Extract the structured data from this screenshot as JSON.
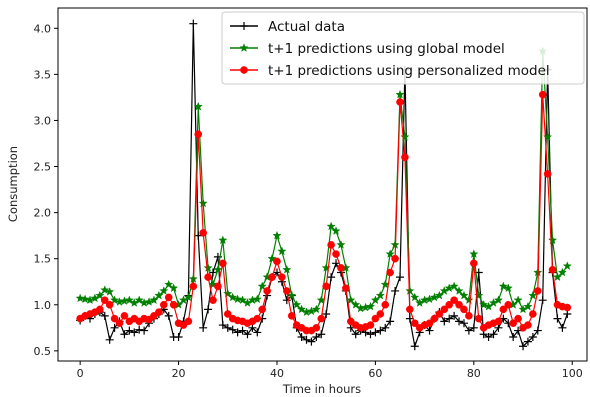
{
  "chart_data": {
    "type": "line",
    "title": "",
    "xlabel": "Time in hours",
    "ylabel": "Consumption",
    "xlim": [
      -4.5,
      103
    ],
    "ylim": [
      0.39,
      4.22
    ],
    "xticks": [
      0,
      20,
      40,
      60,
      80,
      100
    ],
    "yticks": [
      0.5,
      1.0,
      1.5,
      2.0,
      2.5,
      3.0,
      3.5,
      4.0
    ],
    "grid": false,
    "legend_position": "top-right",
    "x": [
      0,
      1,
      2,
      3,
      4,
      5,
      6,
      7,
      8,
      9,
      10,
      11,
      12,
      13,
      14,
      15,
      16,
      17,
      18,
      19,
      20,
      21,
      22,
      23,
      24,
      25,
      26,
      27,
      28,
      29,
      30,
      31,
      32,
      33,
      34,
      35,
      36,
      37,
      38,
      39,
      40,
      41,
      42,
      43,
      44,
      45,
      46,
      47,
      48,
      49,
      50,
      51,
      52,
      53,
      54,
      55,
      56,
      57,
      58,
      59,
      60,
      61,
      62,
      63,
      64,
      65,
      66,
      67,
      68,
      69,
      70,
      71,
      72,
      73,
      74,
      75,
      76,
      77,
      78,
      79,
      80,
      81,
      82,
      83,
      84,
      85,
      86,
      87,
      88,
      89,
      90,
      91,
      92,
      93,
      94,
      95,
      96,
      97,
      98,
      99
    ],
    "series": [
      {
        "name": "Actual data",
        "color": "#000000",
        "marker": "plus",
        "values": [
          0.83,
          0.88,
          0.85,
          0.9,
          0.92,
          0.88,
          0.62,
          0.75,
          0.82,
          0.68,
          0.72,
          0.7,
          0.73,
          0.72,
          0.8,
          0.85,
          0.9,
          0.95,
          0.88,
          0.65,
          0.65,
          0.82,
          1.1,
          4.05,
          1.75,
          0.75,
          0.95,
          1.35,
          1.52,
          0.78,
          0.75,
          0.73,
          0.7,
          0.72,
          0.68,
          0.75,
          0.7,
          0.85,
          1.1,
          1.3,
          1.35,
          1.25,
          1.05,
          1.1,
          0.75,
          0.65,
          0.62,
          0.6,
          0.65,
          0.68,
          0.9,
          1.3,
          1.45,
          1.35,
          1.15,
          0.75,
          0.68,
          0.72,
          0.7,
          0.68,
          0.7,
          0.72,
          0.75,
          0.82,
          1.15,
          1.3,
          3.55,
          0.85,
          0.55,
          0.7,
          0.78,
          0.72,
          0.85,
          0.92,
          0.82,
          0.85,
          0.88,
          0.82,
          0.8,
          0.72,
          0.75,
          1.35,
          0.68,
          0.65,
          0.68,
          0.75,
          0.85,
          0.8,
          0.65,
          0.72,
          0.55,
          0.6,
          0.65,
          0.72,
          1.05,
          3.55,
          1.35,
          0.85,
          0.75,
          0.9
        ]
      },
      {
        "name": "t+1 predictions using global model",
        "color": "#008000",
        "marker": "star",
        "values": [
          1.07,
          1.06,
          1.05,
          1.07,
          1.1,
          1.16,
          1.14,
          1.05,
          1.03,
          1.04,
          1.05,
          1.02,
          1.05,
          1.02,
          1.03,
          1.05,
          1.1,
          1.15,
          1.22,
          1.18,
          1.0,
          1.05,
          1.08,
          1.28,
          3.15,
          2.1,
          1.4,
          1.22,
          1.38,
          1.7,
          1.12,
          1.08,
          1.06,
          1.05,
          1.02,
          1.05,
          1.06,
          1.2,
          1.3,
          1.5,
          1.75,
          1.58,
          1.38,
          1.1,
          1.0,
          0.95,
          0.92,
          0.93,
          0.95,
          1.05,
          1.4,
          1.85,
          1.8,
          1.65,
          1.4,
          1.05,
          1.0,
          0.96,
          0.97,
          0.98,
          1.05,
          1.1,
          1.22,
          1.55,
          1.65,
          3.28,
          2.82,
          1.15,
          1.08,
          1.02,
          1.05,
          1.06,
          1.08,
          1.1,
          1.15,
          1.18,
          1.2,
          1.15,
          1.1,
          1.05,
          1.55,
          1.1,
          1.0,
          0.98,
          1.02,
          1.05,
          1.2,
          1.18,
          1.0,
          1.05,
          0.95,
          0.98,
          1.1,
          1.35,
          3.75,
          2.82,
          1.7,
          1.3,
          1.35,
          1.42
        ]
      },
      {
        "name": "t+1 predictions using personalized model",
        "color": "#ff0000",
        "marker": "circle",
        "values": [
          0.85,
          0.88,
          0.9,
          0.92,
          0.95,
          1.05,
          1.0,
          0.85,
          0.8,
          0.88,
          0.82,
          0.85,
          0.82,
          0.85,
          0.84,
          0.88,
          0.92,
          1.0,
          1.08,
          1.0,
          0.8,
          0.78,
          0.82,
          1.2,
          2.85,
          1.78,
          1.3,
          1.05,
          1.2,
          1.45,
          0.9,
          0.85,
          0.83,
          0.82,
          0.8,
          0.82,
          0.85,
          0.95,
          1.15,
          1.3,
          1.47,
          1.3,
          1.15,
          0.88,
          0.78,
          0.75,
          0.72,
          0.72,
          0.75,
          0.85,
          1.2,
          1.65,
          1.55,
          1.4,
          1.18,
          0.82,
          0.78,
          0.75,
          0.76,
          0.78,
          0.85,
          0.9,
          1.0,
          1.35,
          1.5,
          3.2,
          2.6,
          0.95,
          0.8,
          0.75,
          0.78,
          0.8,
          0.85,
          0.9,
          0.95,
          1.0,
          1.05,
          1.0,
          0.95,
          0.88,
          1.45,
          0.85,
          0.75,
          0.78,
          0.8,
          0.82,
          0.95,
          1.0,
          0.8,
          0.85,
          0.75,
          0.78,
          0.9,
          1.15,
          3.28,
          2.42,
          1.38,
          1.0,
          0.98,
          0.97
        ]
      }
    ]
  }
}
